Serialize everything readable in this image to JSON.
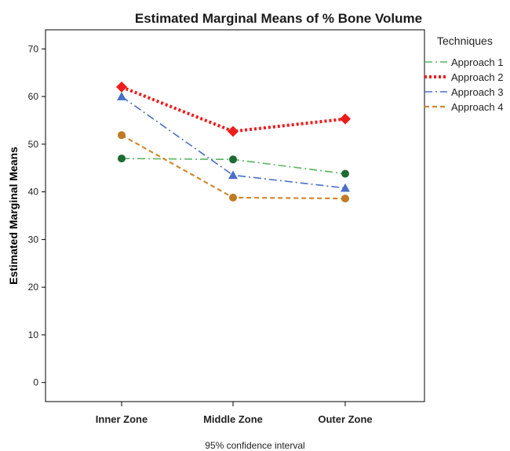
{
  "chart_data": {
    "type": "line",
    "title": "Estimated Marginal Means of % Bone Volume",
    "xlabel": "",
    "ylabel": "Estimated Marginal Means",
    "footer": "95% confidence interval",
    "categories": [
      "Inner Zone",
      "Middle Zone",
      "Outer Zone"
    ],
    "ylim": [
      -4,
      74
    ],
    "yticks": [
      0,
      10,
      20,
      30,
      40,
      50,
      60,
      70
    ],
    "grid": false,
    "legend": {
      "title": "Techniques",
      "placement": "right"
    },
    "series": [
      {
        "name": "Approach 1",
        "values": [
          47.0,
          46.8,
          43.8
        ],
        "color": "#57b55f",
        "marker_color": "#1e6b34",
        "marker": "circle",
        "dash": "dashdot"
      },
      {
        "name": "Approach 2",
        "values": [
          62.0,
          52.7,
          55.3
        ],
        "color": "#ee1c1c",
        "marker_color": "#ee1c1c",
        "marker": "diamond",
        "dash": "dotted"
      },
      {
        "name": "Approach 3",
        "values": [
          60.0,
          43.5,
          40.8
        ],
        "color": "#4a6fc7",
        "marker_color": "#4a6fc7",
        "marker": "triangle",
        "dash": "dashdot"
      },
      {
        "name": "Approach 4",
        "values": [
          51.9,
          38.8,
          38.6
        ],
        "color": "#d08a30",
        "marker_color": "#c07a22",
        "marker": "circle",
        "dash": "dashed"
      }
    ]
  }
}
